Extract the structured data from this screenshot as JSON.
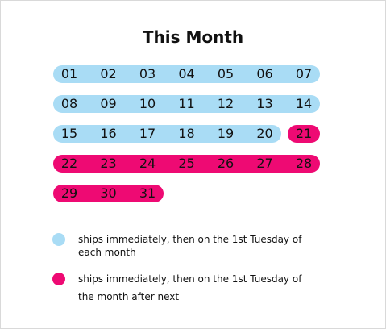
{
  "title": "This Month",
  "colors": {
    "immediate": "#a9dcf5",
    "next": "#ee0a73",
    "text": "#111111"
  },
  "rows": [
    {
      "segments": [
        {
          "type": "immediate",
          "days": [
            "01",
            "02",
            "03",
            "04",
            "05",
            "06",
            "07"
          ]
        }
      ]
    },
    {
      "segments": [
        {
          "type": "immediate",
          "days": [
            "08",
            "09",
            "10",
            "11",
            "12",
            "13",
            "14"
          ]
        }
      ]
    },
    {
      "segments": [
        {
          "type": "immediate",
          "days": [
            "15",
            "16",
            "17",
            "18",
            "19",
            "20"
          ]
        },
        {
          "type": "next",
          "days": [
            "21"
          ]
        }
      ]
    },
    {
      "segments": [
        {
          "type": "next",
          "days": [
            "22",
            "23",
            "24",
            "25",
            "26",
            "27",
            "28"
          ]
        }
      ]
    },
    {
      "segments": [
        {
          "type": "next",
          "days": [
            "29",
            "30",
            "31"
          ]
        }
      ]
    }
  ],
  "legend": {
    "immediate": {
      "line1": "ships immediately, then on the 1st Tuesday of",
      "line2": "each month"
    },
    "next": {
      "line1": "ships immediately, then on the 1st Tuesday of",
      "line2": "the month after next"
    }
  }
}
